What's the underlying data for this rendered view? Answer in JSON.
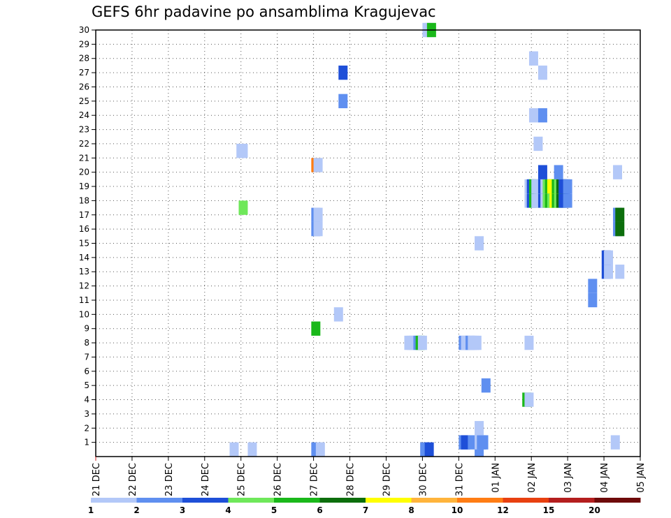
{
  "chart_data": {
    "type": "heatmap",
    "title": "GEFS 6hr padavine po ansamblima Kragujevac",
    "x_ticks": [
      "21 DEC",
      "22 DEC",
      "23 DEC",
      "24 DEC",
      "25 DEC",
      "26 DEC",
      "27 DEC",
      "28 DEC",
      "29 DEC",
      "30 DEC",
      "31 DEC",
      "01 JAN",
      "02 JAN",
      "03 JAN",
      "04 JAN",
      "05 JAN"
    ],
    "x_range": [
      "2016-12-21 00Z",
      "2017-01-05 00Z"
    ],
    "x_step_hours": 6,
    "y_ticks": [
      1,
      2,
      3,
      4,
      5,
      6,
      7,
      8,
      9,
      10,
      11,
      12,
      13,
      14,
      15,
      16,
      17,
      18,
      19,
      20,
      21,
      22,
      23,
      24,
      25,
      26,
      27,
      28,
      29,
      30
    ],
    "y_range": [
      0,
      30
    ],
    "grid": true,
    "colorbar": {
      "labels": [
        "1",
        "2",
        "3",
        "4",
        "5",
        "6",
        "7",
        "8",
        "10",
        "12",
        "15",
        "20"
      ],
      "colors": [
        "#b3c8f8",
        "#5f8ff0",
        "#1e4fd8",
        "#6fe85a",
        "#1ab81a",
        "#0c6e0c",
        "#ffff00",
        "#ffb43c",
        "#ff7d14",
        "#e84010",
        "#b41e1e",
        "#6e0a0a"
      ]
    },
    "cells": [
      {
        "x": 15.25,
        "y": 0.5,
        "level": 1
      },
      {
        "x": 17.25,
        "y": 0.5,
        "level": 1
      },
      {
        "x": 24.25,
        "y": 0.5,
        "level": 2
      },
      {
        "x": 24.75,
        "y": 0.5,
        "level": 1
      },
      {
        "x": 36.25,
        "y": 0.5,
        "level": 2
      },
      {
        "x": 36.75,
        "y": 0.5,
        "level": 3
      },
      {
        "x": 42.25,
        "y": 0.5,
        "level": 2
      },
      {
        "x": 40.5,
        "y": 1,
        "level": 2
      },
      {
        "x": 40.75,
        "y": 1,
        "level": 3
      },
      {
        "x": 41.5,
        "y": 1,
        "level": 2
      },
      {
        "x": 42.25,
        "y": 1,
        "level": 1
      },
      {
        "x": 42.5,
        "y": 1,
        "level": 2
      },
      {
        "x": 42.75,
        "y": 1,
        "level": 2
      },
      {
        "x": 57.25,
        "y": 1,
        "level": 1
      },
      {
        "x": 42.25,
        "y": 2,
        "level": 1
      },
      {
        "x": 47.5,
        "y": 4,
        "level": 5
      },
      {
        "x": 47.75,
        "y": 4,
        "level": 1
      },
      {
        "x": 43.0,
        "y": 5,
        "level": 2
      },
      {
        "x": 34.5,
        "y": 8,
        "level": 1
      },
      {
        "x": 34.75,
        "y": 8,
        "level": 1
      },
      {
        "x": 35.0,
        "y": 8,
        "level": 1
      },
      {
        "x": 35.5,
        "y": 8,
        "level": 2
      },
      {
        "x": 35.75,
        "y": 8,
        "level": 5
      },
      {
        "x": 36.0,
        "y": 8,
        "level": 1
      },
      {
        "x": 40.5,
        "y": 8,
        "level": 2
      },
      {
        "x": 40.75,
        "y": 8,
        "level": 1
      },
      {
        "x": 41.25,
        "y": 8,
        "level": 2
      },
      {
        "x": 41.5,
        "y": 8,
        "level": 1
      },
      {
        "x": 41.75,
        "y": 8,
        "level": 1
      },
      {
        "x": 42.0,
        "y": 8,
        "level": 1
      },
      {
        "x": 47.75,
        "y": 8,
        "level": 1
      },
      {
        "x": 24.25,
        "y": 9,
        "level": 5
      },
      {
        "x": 26.75,
        "y": 10,
        "level": 1
      },
      {
        "x": 54.75,
        "y": 11,
        "level": 2
      },
      {
        "x": 54.75,
        "y": 12,
        "level": 2
      },
      {
        "x": 56.25,
        "y": 13,
        "level": 3
      },
      {
        "x": 56.5,
        "y": 13,
        "level": 1
      },
      {
        "x": 57.75,
        "y": 13,
        "level": 1
      },
      {
        "x": 56.25,
        "y": 14,
        "level": 3
      },
      {
        "x": 56.5,
        "y": 14,
        "level": 1
      },
      {
        "x": 42.25,
        "y": 15,
        "level": 1
      },
      {
        "x": 24.25,
        "y": 16,
        "level": 2
      },
      {
        "x": 24.5,
        "y": 16,
        "level": 1
      },
      {
        "x": 57.5,
        "y": 16,
        "level": 2
      },
      {
        "x": 57.75,
        "y": 16,
        "level": 6
      },
      {
        "x": 24.25,
        "y": 17,
        "level": 2
      },
      {
        "x": 24.5,
        "y": 17,
        "level": 1
      },
      {
        "x": 57.5,
        "y": 17,
        "level": 2
      },
      {
        "x": 57.75,
        "y": 17,
        "level": 6
      },
      {
        "x": 16.25,
        "y": 17.5,
        "level": 4
      },
      {
        "x": 47.75,
        "y": 18,
        "level": 1
      },
      {
        "x": 48.0,
        "y": 18,
        "level": 3
      },
      {
        "x": 48.25,
        "y": 18,
        "level": 5
      },
      {
        "x": 48.5,
        "y": 18,
        "level": 1
      },
      {
        "x": 48.75,
        "y": 18,
        "level": 1
      },
      {
        "x": 49.0,
        "y": 18,
        "level": 1
      },
      {
        "x": 49.25,
        "y": 18,
        "level": 3
      },
      {
        "x": 49.5,
        "y": 18,
        "level": 1
      },
      {
        "x": 49.75,
        "y": 18,
        "level": 4
      },
      {
        "x": 50.0,
        "y": 18,
        "level": 5
      },
      {
        "x": 50.25,
        "y": 18,
        "level": 4
      },
      {
        "x": 50.5,
        "y": 18,
        "level": 7
      },
      {
        "x": 50.75,
        "y": 18,
        "level": 5
      },
      {
        "x": 51.0,
        "y": 18,
        "level": 4
      },
      {
        "x": 51.25,
        "y": 18,
        "level": 6
      },
      {
        "x": 51.5,
        "y": 18,
        "level": 3
      },
      {
        "x": 51.75,
        "y": 18,
        "level": 3
      },
      {
        "x": 52.0,
        "y": 18,
        "level": 2
      },
      {
        "x": 47.75,
        "y": 19,
        "level": 1
      },
      {
        "x": 48.0,
        "y": 19,
        "level": 3
      },
      {
        "x": 48.25,
        "y": 19,
        "level": 5
      },
      {
        "x": 48.5,
        "y": 19,
        "level": 1
      },
      {
        "x": 48.75,
        "y": 19,
        "level": 1
      },
      {
        "x": 49.0,
        "y": 19,
        "level": 1
      },
      {
        "x": 49.25,
        "y": 19,
        "level": 3
      },
      {
        "x": 49.5,
        "y": 19,
        "level": 1
      },
      {
        "x": 49.75,
        "y": 19,
        "level": 4
      },
      {
        "x": 50.0,
        "y": 19,
        "level": 5
      },
      {
        "x": 50.25,
        "y": 19,
        "level": 7
      },
      {
        "x": 50.5,
        "y": 19,
        "level": 7
      },
      {
        "x": 50.75,
        "y": 19,
        "level": 5
      },
      {
        "x": 51.0,
        "y": 19,
        "level": 4
      },
      {
        "x": 51.25,
        "y": 19,
        "level": 6
      },
      {
        "x": 51.5,
        "y": 19,
        "level": 3
      },
      {
        "x": 51.75,
        "y": 19,
        "level": 3
      },
      {
        "x": 52.0,
        "y": 19,
        "level": 2
      },
      {
        "x": 49.25,
        "y": 20,
        "level": 3
      },
      {
        "x": 51.0,
        "y": 20,
        "level": 2
      },
      {
        "x": 57.5,
        "y": 20,
        "level": 1
      },
      {
        "x": 24.25,
        "y": 20.5,
        "level": 9
      },
      {
        "x": 24.5,
        "y": 20.5,
        "level": 1
      },
      {
        "x": 16.0,
        "y": 21.5,
        "level": 1
      },
      {
        "x": 16.25,
        "y": 21.5,
        "level": 1
      },
      {
        "x": 48.75,
        "y": 22,
        "level": 1
      },
      {
        "x": 48.25,
        "y": 24,
        "level": 1
      },
      {
        "x": 49.25,
        "y": 24,
        "level": 2
      },
      {
        "x": 27.25,
        "y": 25,
        "level": 2
      },
      {
        "x": 27.25,
        "y": 27,
        "level": 3
      },
      {
        "x": 49.25,
        "y": 27,
        "level": 1
      },
      {
        "x": 48.25,
        "y": 28,
        "level": 1
      },
      {
        "x": 36.5,
        "y": 30,
        "level": 1
      },
      {
        "x": 36.75,
        "y": 30,
        "level": 1
      },
      {
        "x": 37.0,
        "y": 30,
        "level": 5
      }
    ]
  }
}
